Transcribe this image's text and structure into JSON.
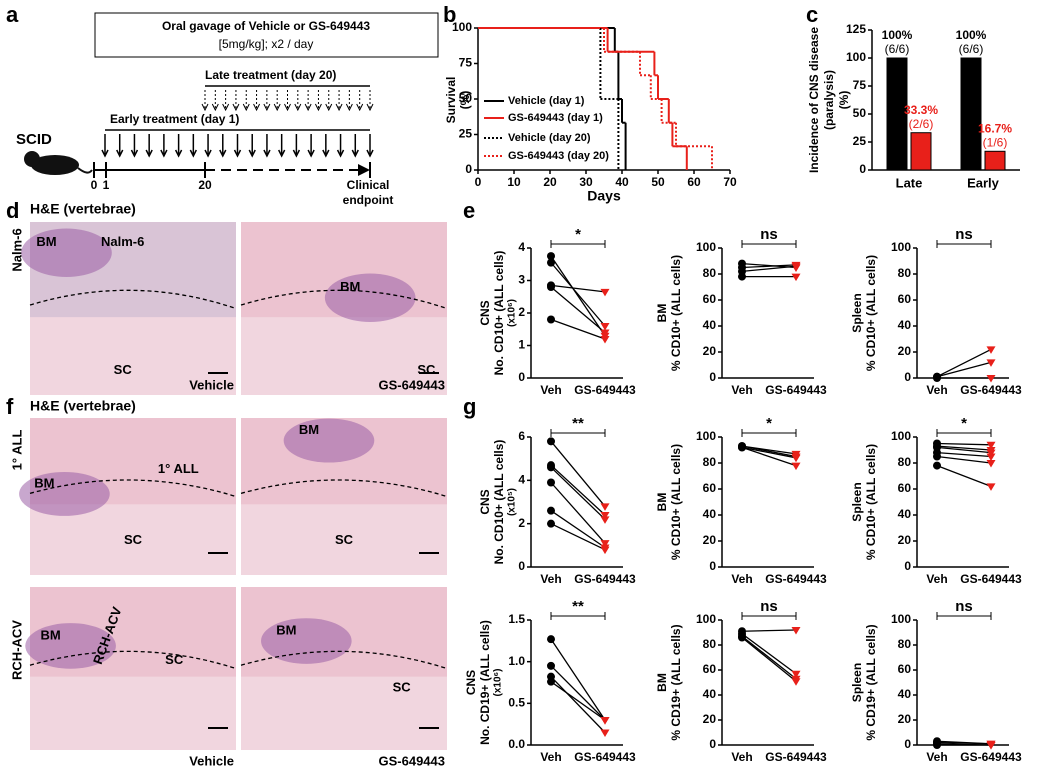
{
  "panel_labels": [
    "a",
    "b",
    "c",
    "d",
    "e",
    "f",
    "g"
  ],
  "schematic": {
    "box_lines": [
      "Oral gavage of Vehicle or GS-649443",
      "[5mg/kg]; x2 / day"
    ],
    "late": "Late treatment (day 20)",
    "early": "Early treatment (day 1)",
    "model": "SCID",
    "timeline": [
      "0",
      "1",
      "20"
    ],
    "endpoint": [
      "Clinical",
      "endpoint"
    ]
  },
  "histology": {
    "titles": [
      "H&E (vertebrae)",
      "H&E (vertebrae)"
    ],
    "rows": [
      {
        "row_label": "Nalm-6",
        "images": [
          {
            "labels": [
              "BM",
              "Nalm-6",
              "SC"
            ],
            "caption": "Vehicle"
          },
          {
            "labels": [
              "BM",
              "SC"
            ],
            "caption": "GS-649443"
          }
        ]
      },
      {
        "row_label": "1° ALL",
        "images": [
          {
            "labels": [
              "BM",
              "1° ALL",
              "SC"
            ]
          },
          {
            "labels": [
              "BM",
              "SC"
            ]
          }
        ]
      },
      {
        "row_label": "RCH-ACV",
        "images": [
          {
            "labels": [
              "BM",
              "RCH-ACV",
              "SC"
            ],
            "caption": "Vehicle"
          },
          {
            "labels": [
              "BM",
              "SC"
            ],
            "caption": "GS-649443"
          }
        ]
      }
    ]
  },
  "chart_data": [
    {
      "type": "step",
      "ylabel": [
        "Survival",
        "(%)"
      ],
      "xlabel": "Days",
      "xlim": [
        0,
        70
      ],
      "xticks": [
        0,
        10,
        20,
        30,
        40,
        50,
        60,
        70
      ],
      "ylim": [
        0,
        100
      ],
      "yticks": [
        0,
        25,
        50,
        75,
        100
      ],
      "series": [
        {
          "name": "Vehicle (day 1)",
          "color": "#000000",
          "dash": "none",
          "x": [
            0,
            38,
            39,
            40,
            41
          ],
          "values": [
            100,
            83.3,
            50,
            33.3,
            0
          ]
        },
        {
          "name": "GS-649443 (day 1)",
          "color": "#e8201a",
          "dash": "none",
          "x": [
            0,
            36,
            49,
            50,
            53,
            54,
            58
          ],
          "values": [
            100,
            83.3,
            66.7,
            50,
            33.3,
            16.7,
            0
          ]
        },
        {
          "name": "Vehicle (day 20)",
          "color": "#000000",
          "dash": "2 2",
          "x": [
            0,
            34,
            39
          ],
          "values": [
            100,
            50,
            0
          ]
        },
        {
          "name": "GS-649443 (day 20)",
          "color": "#e8201a",
          "dash": "2 2",
          "x": [
            0,
            35,
            45,
            48,
            51,
            55,
            65
          ],
          "values": [
            100,
            83.3,
            66.7,
            50,
            33.3,
            16.7,
            0
          ]
        }
      ]
    },
    {
      "type": "bar",
      "ylabel": [
        "Incidence of CNS disease",
        "(paralysis)",
        "(%)"
      ],
      "categories": [
        "Late",
        "Early"
      ],
      "ylim": [
        0,
        125
      ],
      "yticks": [
        0,
        25,
        50,
        75,
        100,
        125
      ],
      "series": [
        {
          "color": "#000000",
          "values": [
            100,
            100
          ],
          "value_labels": [
            "100%",
            "100%"
          ],
          "counts": [
            "(6/6)",
            "(6/6)"
          ]
        },
        {
          "color": "#e8201a",
          "values": [
            33.3,
            16.7
          ],
          "value_labels": [
            "33.3%",
            "16.7%"
          ],
          "counts": [
            "(2/6)",
            "(1/6)"
          ]
        }
      ]
    },
    {
      "type": "paired",
      "title": "CNS",
      "ylabel": [
        "No. CD10+ (ALL cells)",
        "(x10⁶)"
      ],
      "categories": [
        "Veh",
        "GS-649443"
      ],
      "colors": [
        "#000000",
        "#e8201a"
      ],
      "significance": "*",
      "ylim": [
        0,
        4
      ],
      "yticks": [
        0,
        1,
        2,
        3,
        4
      ],
      "pairs": [
        [
          3.75,
          1.3
        ],
        [
          3.55,
          1.6
        ],
        [
          2.85,
          2.65
        ],
        [
          2.8,
          1.4
        ],
        [
          1.8,
          1.2
        ]
      ]
    },
    {
      "type": "paired",
      "title": "BM",
      "ylabel": [
        "% CD10+ (ALL cells)"
      ],
      "categories": [
        "Veh",
        "GS-649443"
      ],
      "colors": [
        "#000000",
        "#e8201a"
      ],
      "significance": "ns",
      "ylim": [
        0,
        100
      ],
      "yticks": [
        0,
        20,
        40,
        60,
        80,
        100
      ],
      "pairs": [
        [
          88,
          85
        ],
        [
          85,
          87
        ],
        [
          82,
          86
        ],
        [
          78,
          78
        ]
      ]
    },
    {
      "type": "paired",
      "title": "Spleen",
      "ylabel": [
        "% CD10+ (ALL cells)"
      ],
      "categories": [
        "Veh",
        "GS-649443"
      ],
      "colors": [
        "#000000",
        "#e8201a"
      ],
      "significance": "ns",
      "ylim": [
        0,
        100
      ],
      "yticks": [
        0,
        20,
        40,
        60,
        80,
        100
      ],
      "pairs": [
        [
          1,
          22
        ],
        [
          1,
          12
        ],
        [
          0,
          0
        ]
      ]
    },
    {
      "type": "paired",
      "title": "CNS",
      "ylabel": [
        "No. CD10+ (ALL cells)",
        "(x10⁵)"
      ],
      "categories": [
        "Veh",
        "GS-649443"
      ],
      "colors": [
        "#000000",
        "#e8201a"
      ],
      "significance": "**",
      "ylim": [
        0,
        6
      ],
      "yticks": [
        0,
        2,
        4,
        6
      ],
      "pairs": [
        [
          5.8,
          2.8
        ],
        [
          4.7,
          2.4
        ],
        [
          4.6,
          2.2
        ],
        [
          3.9,
          1.1
        ],
        [
          2.6,
          0.9
        ],
        [
          2.0,
          0.8
        ]
      ]
    },
    {
      "type": "paired",
      "title": "BM",
      "ylabel": [
        "% CD10+ (ALL cells)"
      ],
      "categories": [
        "Veh",
        "GS-649443"
      ],
      "colors": [
        "#000000",
        "#e8201a"
      ],
      "significance": "*",
      "ylim": [
        0,
        100
      ],
      "yticks": [
        0,
        20,
        40,
        60,
        80,
        100
      ],
      "pairs": [
        [
          93,
          87
        ],
        [
          93,
          85
        ],
        [
          92,
          84
        ],
        [
          92,
          78
        ]
      ]
    },
    {
      "type": "paired",
      "title": "Spleen",
      "ylabel": [
        "% CD10+ (ALL cells)"
      ],
      "categories": [
        "Veh",
        "GS-649443"
      ],
      "colors": [
        "#000000",
        "#e8201a"
      ],
      "significance": "*",
      "ylim": [
        0,
        100
      ],
      "yticks": [
        0,
        20,
        40,
        60,
        80,
        100
      ],
      "pairs": [
        [
          95,
          94
        ],
        [
          93,
          90
        ],
        [
          92,
          88
        ],
        [
          88,
          85
        ],
        [
          85,
          80
        ],
        [
          78,
          62
        ]
      ]
    },
    {
      "type": "paired",
      "title": "CNS",
      "ylabel": [
        "No. CD19+ (ALL cells)",
        "(x10⁶)"
      ],
      "categories": [
        "Veh",
        "GS-649443"
      ],
      "colors": [
        "#000000",
        "#e8201a"
      ],
      "significance": "**",
      "ylim": [
        0,
        1.5
      ],
      "yticks": [
        {
          "value": 0,
          "label": "0.0"
        },
        0.5,
        {
          "value": 1,
          "label": "1.0"
        },
        1.5
      ],
      "pairs": [
        [
          1.27,
          0.3
        ],
        [
          0.95,
          0.3
        ],
        [
          0.82,
          0.15
        ],
        [
          0.76,
          0.3
        ]
      ]
    },
    {
      "type": "paired",
      "title": "BM",
      "ylabel": [
        "% CD19+ (ALL cells)"
      ],
      "categories": [
        "Veh",
        "GS-649443"
      ],
      "colors": [
        "#000000",
        "#e8201a"
      ],
      "significance": "ns",
      "ylim": [
        0,
        100
      ],
      "yticks": [
        0,
        20,
        40,
        60,
        80,
        100
      ],
      "pairs": [
        [
          91,
          92
        ],
        [
          89,
          57
        ],
        [
          87,
          53
        ],
        [
          86,
          51
        ]
      ]
    },
    {
      "type": "paired",
      "title": "Spleen",
      "ylabel": [
        "% CD19+ (ALL cells)"
      ],
      "categories": [
        "Veh",
        "GS-649443"
      ],
      "colors": [
        "#000000",
        "#e8201a"
      ],
      "significance": "ns",
      "ylim": [
        0,
        100
      ],
      "yticks": [
        0,
        20,
        40,
        60,
        80,
        100
      ],
      "pairs": [
        [
          3,
          1
        ],
        [
          2,
          1
        ],
        [
          1,
          0
        ],
        [
          0,
          0
        ]
      ]
    }
  ]
}
